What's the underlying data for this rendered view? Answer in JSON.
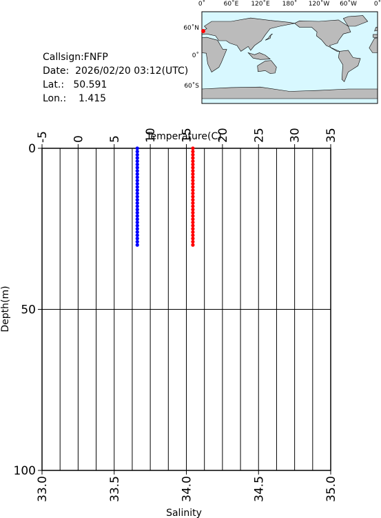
{
  "info": {
    "callsign": "Callsign:FNFP",
    "date": "Date:  2026/02/20 03:12(UTC)",
    "lat": "Lat.:   50.591",
    "lon": "Lon.:    1.415"
  },
  "map": {
    "lon_labels": [
      "0˚",
      "60˚E",
      "120˚E",
      "180˚",
      "120˚W",
      "60˚W",
      "0˚"
    ],
    "lat_labels": [
      "60˚N",
      "0˚",
      "60˚S"
    ]
  },
  "chart_data": {
    "type": "scatter",
    "xlabel": "Salinity",
    "x2label": "Temperature(C)",
    "ylabel": "Depth(m)",
    "xlim": [
      33,
      35
    ],
    "xticks": [
      {
        "value": 33,
        "label": "33.0"
      },
      {
        "value": 33.5,
        "label": "33.5"
      },
      {
        "value": 34,
        "label": "34.0"
      },
      {
        "value": 34.5,
        "label": "34.5"
      },
      {
        "value": 35,
        "label": "35.0"
      }
    ],
    "x2lim": [
      -5,
      35
    ],
    "x2ticks": [
      -5,
      0,
      5,
      10,
      15,
      20,
      25,
      30,
      35
    ],
    "x2minor": [
      -2.5,
      2.5,
      7.5,
      12.5,
      17.5,
      22.5,
      27.5,
      32.5
    ],
    "ylim": [
      0,
      100
    ],
    "yticks": [
      0,
      50,
      100
    ],
    "yinverted": true,
    "grid": true,
    "series": [
      {
        "color": "#ff0000",
        "axis": "x2",
        "x": [
          15.9,
          15.9,
          15.9,
          15.9,
          15.9,
          15.9,
          15.9,
          15.9,
          15.9,
          15.9,
          15.9,
          15.9,
          15.9,
          15.9,
          15.9,
          15.9,
          15.9,
          15.9,
          15.9,
          15.9,
          15.9,
          15.9,
          15.9,
          15.9,
          15.9,
          15.9,
          15.9,
          15.9,
          15.9,
          15.9,
          15.9
        ],
        "y": [
          0,
          1,
          2,
          3,
          4,
          5,
          6,
          7,
          8,
          9,
          10,
          11,
          12,
          13,
          14,
          15,
          16,
          17,
          18,
          19,
          20,
          21,
          22,
          23,
          24,
          25,
          26,
          27,
          28,
          29,
          30
        ]
      },
      {
        "color": "#0000ff",
        "axis": "x",
        "x": [
          33.66,
          33.66,
          33.66,
          33.66,
          33.66,
          33.66,
          33.66,
          33.66,
          33.66,
          33.66,
          33.66,
          33.66,
          33.66,
          33.66,
          33.66,
          33.66,
          33.66,
          33.66,
          33.66,
          33.66,
          33.66,
          33.66,
          33.66,
          33.66,
          33.66,
          33.66,
          33.66,
          33.66,
          33.66,
          33.66,
          33.66
        ],
        "y": [
          0,
          1,
          2,
          3,
          4,
          5,
          6,
          7,
          8,
          9,
          10,
          11,
          12,
          13,
          14,
          15,
          16,
          17,
          18,
          19,
          20,
          21,
          22,
          23,
          24,
          25,
          26,
          27,
          28,
          29,
          30
        ]
      }
    ]
  }
}
